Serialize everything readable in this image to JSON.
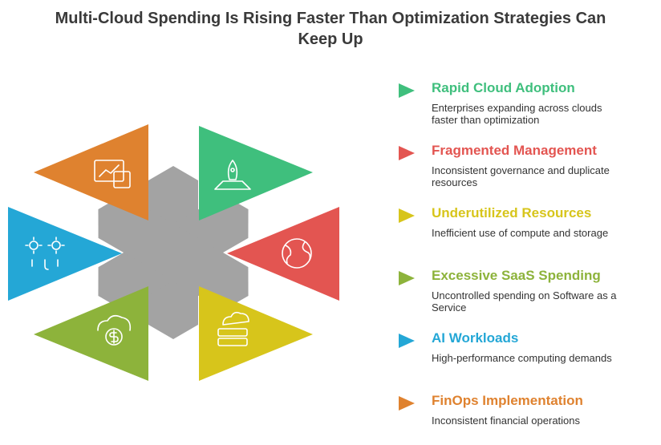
{
  "header": {
    "title": "Multi-Cloud Spending Is Rising Faster Than Optimization Strategies Can Keep Up"
  },
  "items": [
    {
      "title": "Rapid Cloud Adoption",
      "description": "Enterprises expanding across clouds faster than optimization",
      "color": "#3fbf7d"
    },
    {
      "title": "Fragmented Management",
      "description": "Inconsistent governance and duplicate resources",
      "color": "#e35551"
    },
    {
      "title": "Underutilized Resources",
      "description": "Inefficient use of compute and storage",
      "color": "#d7c51b"
    },
    {
      "title": "Excessive SaaS Spending",
      "description": "Uncontrolled spending on Software as a Service",
      "color": "#8db33b"
    },
    {
      "title": "AI Workloads",
      "description": "High-performance computing demands",
      "color": "#24a7d6"
    },
    {
      "title": "FinOps Implementation",
      "description": "Inconsistent financial operations",
      "color": "#df822f"
    }
  ]
}
